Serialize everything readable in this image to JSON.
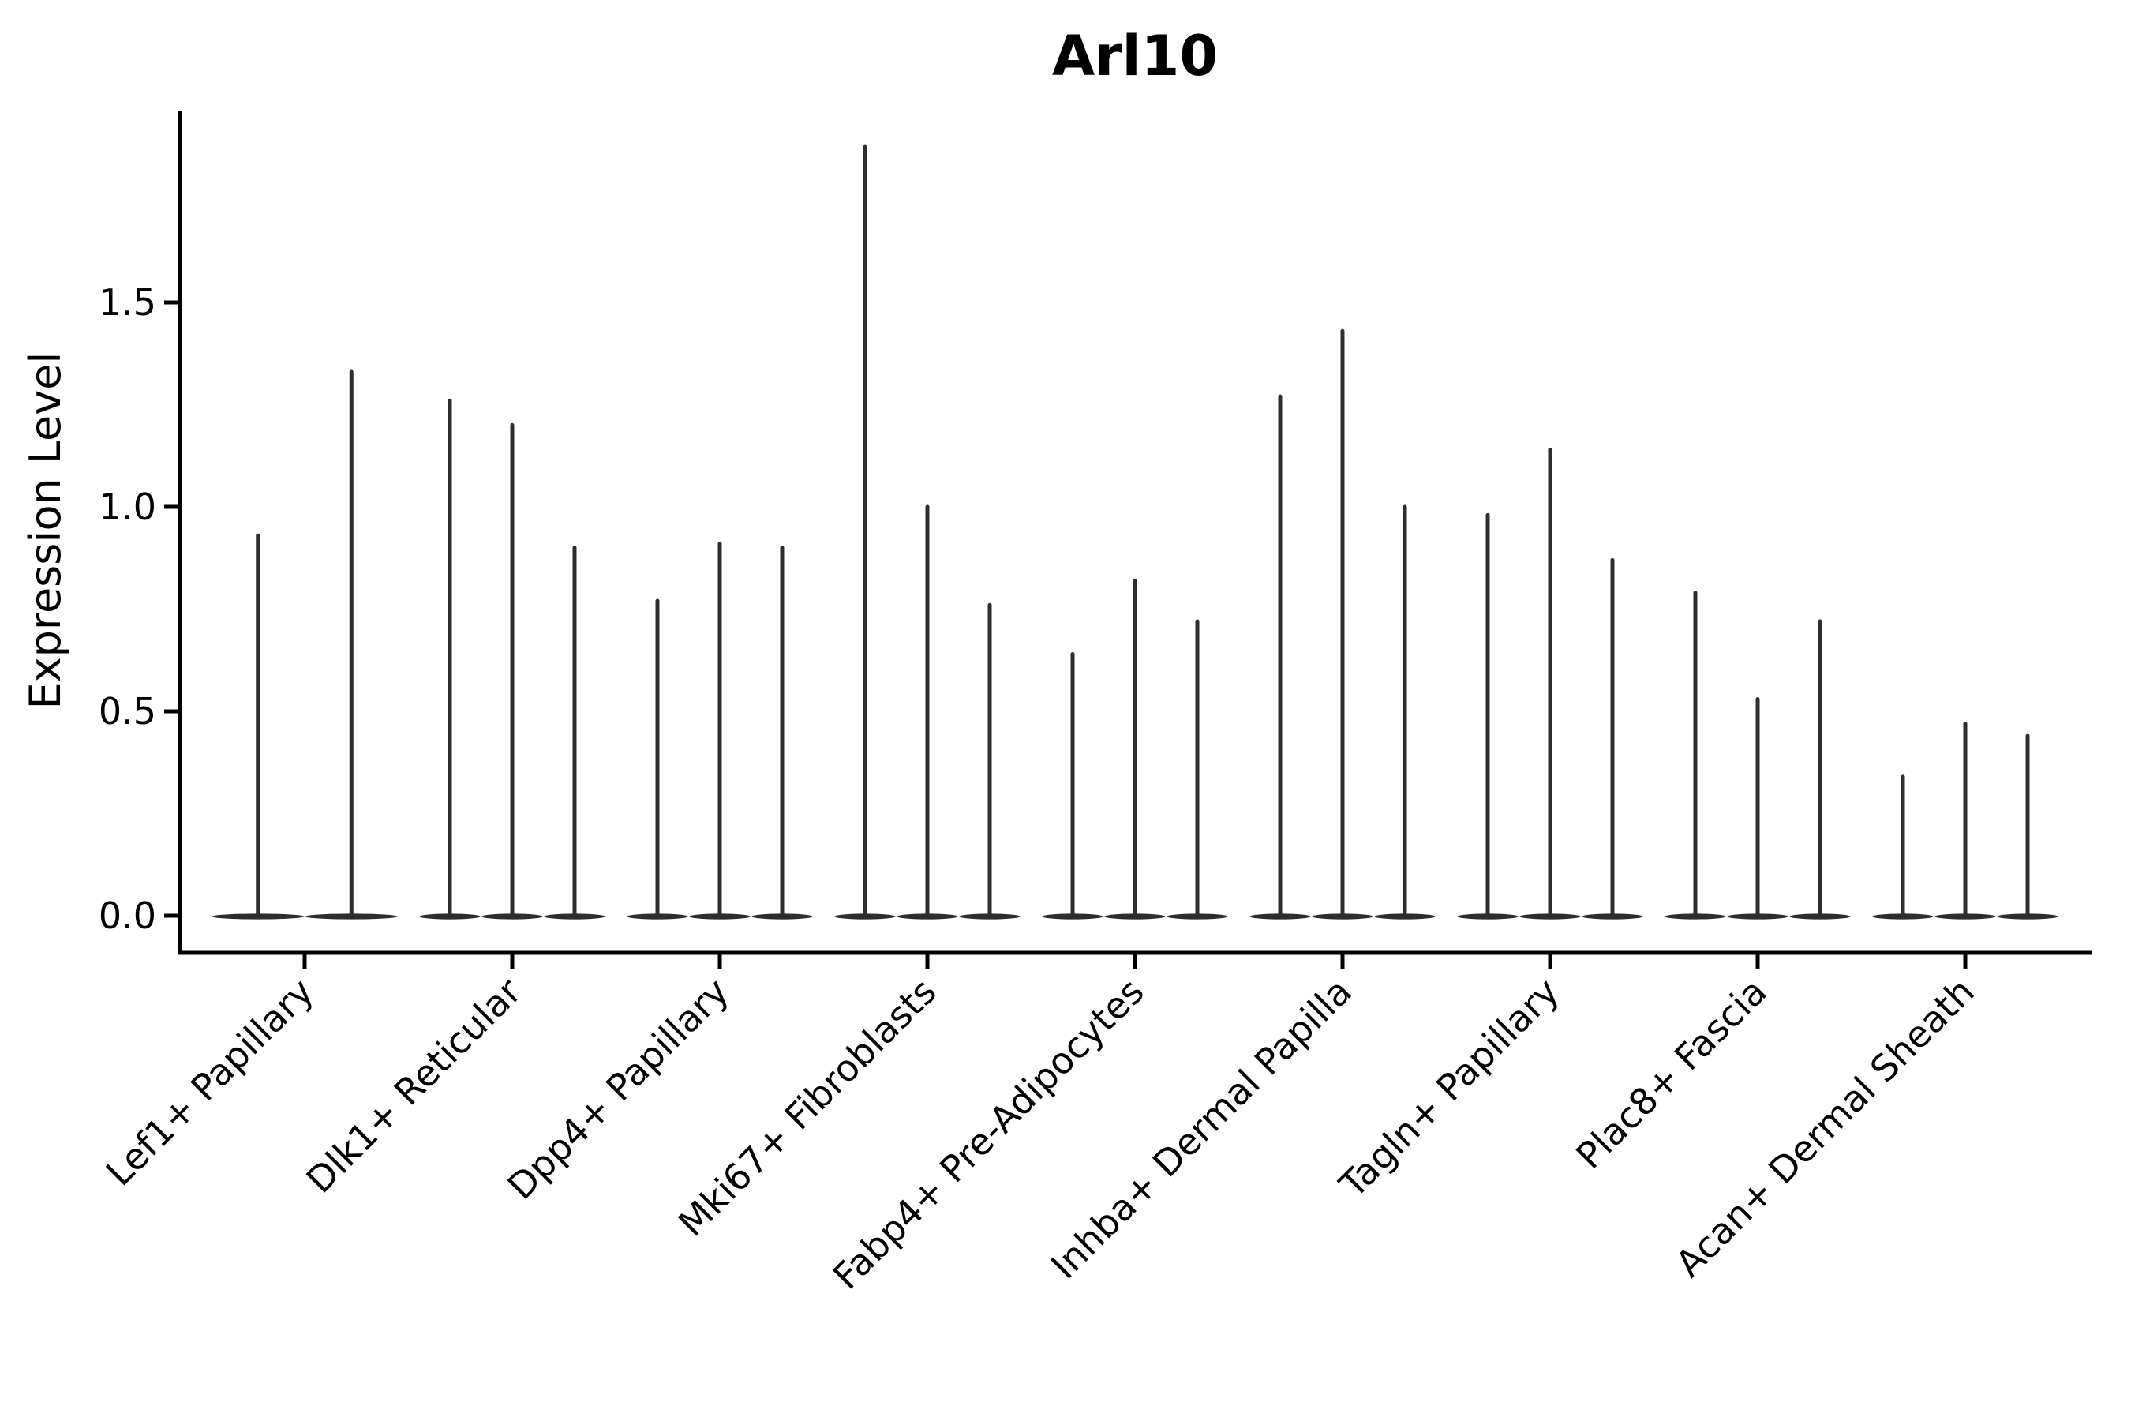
{
  "figure": {
    "background": "#ffffff"
  },
  "chart_data": {
    "type": "violin",
    "title": "Arl10",
    "ylabel": "Expression Level",
    "xlabel": "",
    "grid": false,
    "legend": false,
    "ylim": [
      0,
      1.97
    ],
    "yticks": [
      0,
      0.5,
      1.0,
      1.5
    ],
    "ytick_labels": [
      "0.0",
      "0.5",
      "1.0",
      "1.5"
    ],
    "violin_style": "Each violin has nearly all density flattened at expression 0 (wide flat base) with a very thin spike rising to its maximum expression value",
    "categories": [
      "Lef1+ Papillary",
      "Dlk1+ Reticular",
      "Dpp4+ Papillary",
      "Mki67+ Fibroblasts",
      "Fabp4+ Pre-Adipocytes",
      "Inhba+ Dermal Papilla",
      "Tagln+ Papillary",
      "Plac8+ Fascia",
      "Acan+ Dermal Sheath"
    ],
    "series": [
      {
        "category": "Lef1+ Papillary",
        "violin_max_expression": [
          0.93,
          1.33
        ]
      },
      {
        "category": "Dlk1+ Reticular",
        "violin_max_expression": [
          1.26,
          1.2,
          0.9
        ]
      },
      {
        "category": "Dpp4+ Papillary",
        "violin_max_expression": [
          0.77,
          0.91,
          0.9
        ]
      },
      {
        "category": "Mki67+ Fibroblasts",
        "violin_max_expression": [
          1.88,
          1.0,
          0.76
        ]
      },
      {
        "category": "Fabp4+ Pre-Adipocytes",
        "violin_max_expression": [
          0.64,
          0.82,
          0.72
        ]
      },
      {
        "category": "Inhba+ Dermal Papilla",
        "violin_max_expression": [
          1.27,
          1.43,
          1.0
        ]
      },
      {
        "category": "Tagln+ Papillary",
        "violin_max_expression": [
          0.98,
          1.14,
          0.87
        ]
      },
      {
        "category": "Plac8+ Fascia",
        "violin_max_expression": [
          0.79,
          0.53,
          0.72
        ]
      },
      {
        "category": "Acan+ Dermal Sheath",
        "violin_max_expression": [
          0.34,
          0.47,
          0.44
        ]
      }
    ],
    "colors": {
      "violin": "#2d2d2d",
      "axis": "#000000",
      "text": "#000000",
      "background": "#ffffff"
    }
  }
}
